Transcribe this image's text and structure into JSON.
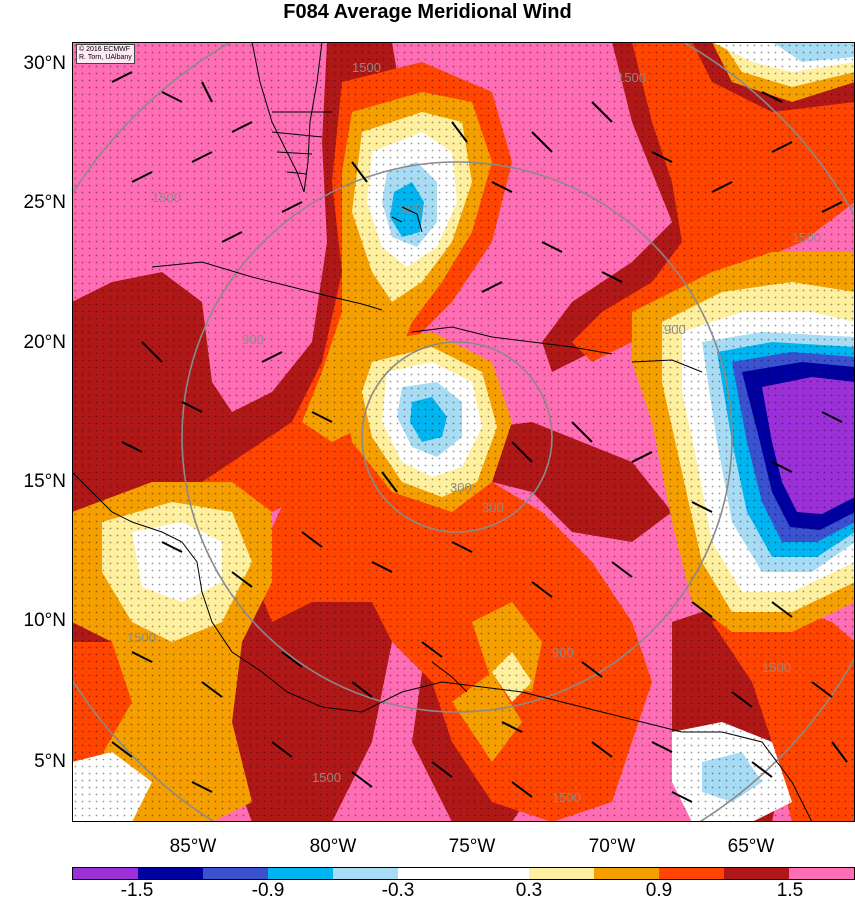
{
  "title": "F084 Average Meridional Wind",
  "copyright": [
    "© 2016 ECMWF",
    "R. Torn, UAlbany"
  ],
  "lat_labels": [
    "30°N",
    "25°N",
    "20°N",
    "15°N",
    "10°N",
    "5°N"
  ],
  "lon_labels": [
    "85°W",
    "80°W",
    "75°W",
    "70°W",
    "65°W"
  ],
  "ring_labels": [
    "300",
    "900",
    "1500"
  ],
  "colorbar": {
    "colors": [
      "#9b30d8",
      "#0000a0",
      "#3a52d0",
      "#00b4f0",
      "#a8dcf5",
      "#ffffff",
      "#ffffff",
      "#fff0a0",
      "#f5a000",
      "#ff4500",
      "#b01818",
      "#ff6eb4"
    ],
    "labels": [
      "-1.5",
      "-0.9",
      "-0.3",
      "0.3",
      "0.9",
      "1.5"
    ]
  },
  "colors": {
    "background": "#ff6eb4",
    "ring": "#8a8a8a",
    "coast": "#000000"
  }
}
